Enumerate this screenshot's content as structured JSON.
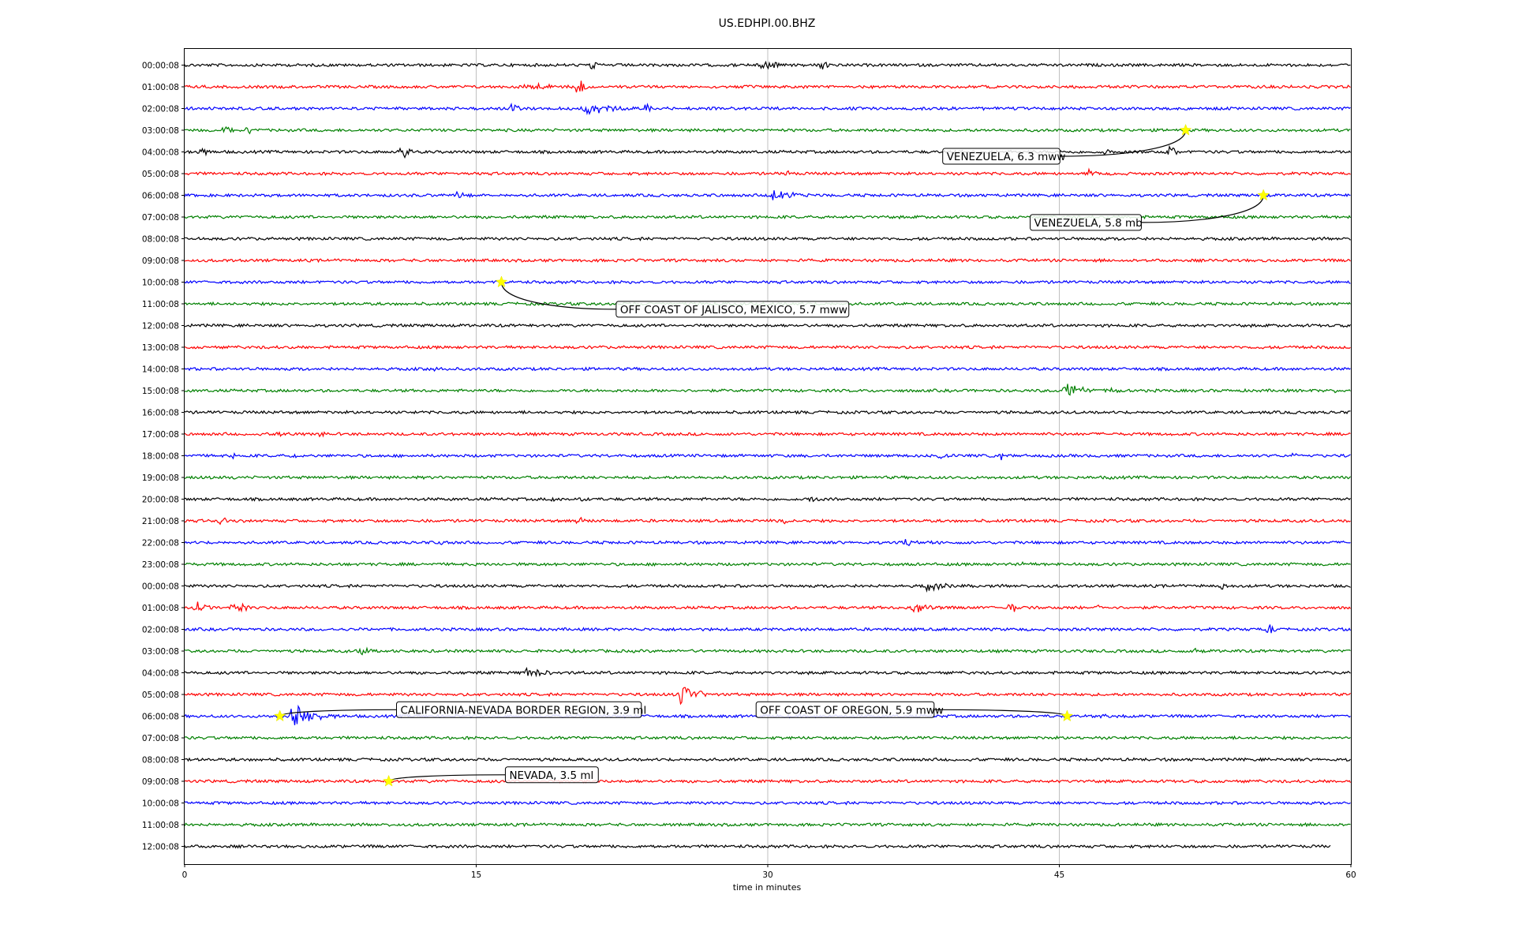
{
  "chart_data": {
    "type": "line",
    "title": "US.EDHPI.00.BHZ",
    "xlabel": "time in minutes",
    "xlim": [
      0,
      60
    ],
    "xticks": [
      0,
      15,
      30,
      45,
      60
    ],
    "grid": "vertical",
    "trace_colors": [
      "#000000",
      "#ff0000",
      "#0000ff",
      "#008000"
    ],
    "rows": [
      "00:00:08",
      "01:00:08",
      "02:00:08",
      "03:00:08",
      "04:00:08",
      "05:00:08",
      "06:00:08",
      "07:00:08",
      "08:00:08",
      "09:00:08",
      "10:00:08",
      "11:00:08",
      "12:00:08",
      "13:00:08",
      "14:00:08",
      "15:00:08",
      "16:00:08",
      "17:00:08",
      "18:00:08",
      "19:00:08",
      "20:00:08",
      "21:00:08",
      "22:00:08",
      "23:00:08",
      "00:00:08",
      "01:00:08",
      "02:00:08",
      "03:00:08",
      "04:00:08",
      "05:00:08",
      "06:00:08",
      "07:00:08",
      "08:00:08",
      "09:00:08",
      "10:00:08",
      "11:00:08",
      "12:00:08"
    ],
    "last_row_end_minute": 59,
    "bursts": [
      {
        "row": 0,
        "minute": 21.0,
        "amp": 1.6,
        "dur": 0.3
      },
      {
        "row": 0,
        "minute": 29.8,
        "amp": 1.8,
        "dur": 1.2
      },
      {
        "row": 0,
        "minute": 32.8,
        "amp": 1.0,
        "dur": 0.6
      },
      {
        "row": 1,
        "minute": 17.5,
        "amp": 0.8,
        "dur": 3.5
      },
      {
        "row": 1,
        "minute": 20.3,
        "amp": 1.8,
        "dur": 0.6
      },
      {
        "row": 2,
        "minute": 16.8,
        "amp": 1.0,
        "dur": 1.0
      },
      {
        "row": 2,
        "minute": 20.5,
        "amp": 1.2,
        "dur": 3.5
      },
      {
        "row": 2,
        "minute": 23.8,
        "amp": 1.8,
        "dur": 0.3
      },
      {
        "row": 3,
        "minute": 2.0,
        "amp": 1.0,
        "dur": 1.5
      },
      {
        "row": 3,
        "minute": 3.3,
        "amp": 1.0,
        "dur": 0.3
      },
      {
        "row": 4,
        "minute": 0.8,
        "amp": 1.0,
        "dur": 0.8
      },
      {
        "row": 4,
        "minute": 11.2,
        "amp": 1.4,
        "dur": 0.8
      },
      {
        "row": 4,
        "minute": 47.3,
        "amp": 0.8,
        "dur": 0.8
      },
      {
        "row": 4,
        "minute": 50.6,
        "amp": 1.6,
        "dur": 0.8
      },
      {
        "row": 5,
        "minute": 31.0,
        "amp": 1.0,
        "dur": 0.3
      },
      {
        "row": 5,
        "minute": 46.5,
        "amp": 0.8,
        "dur": 1.0
      },
      {
        "row": 6,
        "minute": 14.0,
        "amp": 0.6,
        "dur": 2.0
      },
      {
        "row": 6,
        "minute": 30.2,
        "amp": 1.2,
        "dur": 2.5
      },
      {
        "row": 10,
        "minute": 16.3,
        "amp": 0.4,
        "dur": 0.6
      },
      {
        "row": 14,
        "minute": 12.8,
        "amp": 0.6,
        "dur": 1.0
      },
      {
        "row": 15,
        "minute": 45.2,
        "amp": 1.8,
        "dur": 2.0
      },
      {
        "row": 15,
        "minute": 47.8,
        "amp": 0.8,
        "dur": 0.8
      },
      {
        "row": 15,
        "minute": 59.3,
        "amp": 1.0,
        "dur": 0.4
      },
      {
        "row": 17,
        "minute": 4.8,
        "amp": 0.8,
        "dur": 1.0
      },
      {
        "row": 17,
        "minute": 7.0,
        "amp": 0.8,
        "dur": 0.6
      },
      {
        "row": 18,
        "minute": 2.5,
        "amp": 0.8,
        "dur": 0.4
      },
      {
        "row": 18,
        "minute": 5.5,
        "amp": 0.8,
        "dur": 0.6
      },
      {
        "row": 18,
        "minute": 38.8,
        "amp": 0.8,
        "dur": 0.6
      },
      {
        "row": 18,
        "minute": 42.0,
        "amp": 0.8,
        "dur": 0.3
      },
      {
        "row": 18,
        "minute": 57.0,
        "amp": 0.8,
        "dur": 0.5
      },
      {
        "row": 19,
        "minute": 2.5,
        "amp": 0.8,
        "dur": 0.4
      },
      {
        "row": 19,
        "minute": 47.5,
        "amp": 0.6,
        "dur": 0.6
      },
      {
        "row": 20,
        "minute": 18.8,
        "amp": 0.8,
        "dur": 1.0
      },
      {
        "row": 20,
        "minute": 20.5,
        "amp": 1.0,
        "dur": 0.4
      },
      {
        "row": 20,
        "minute": 32.3,
        "amp": 1.0,
        "dur": 0.6
      },
      {
        "row": 21,
        "minute": 1.8,
        "amp": 0.8,
        "dur": 1.0
      },
      {
        "row": 21,
        "minute": 20.3,
        "amp": 1.0,
        "dur": 0.6
      },
      {
        "row": 21,
        "minute": 30.8,
        "amp": 1.0,
        "dur": 0.4
      },
      {
        "row": 22,
        "minute": 13.2,
        "amp": 0.6,
        "dur": 0.5
      },
      {
        "row": 22,
        "minute": 37.0,
        "amp": 0.6,
        "dur": 2.0
      },
      {
        "row": 23,
        "minute": 38.0,
        "amp": 0.8,
        "dur": 0.3
      },
      {
        "row": 23,
        "minute": 43.0,
        "amp": 0.8,
        "dur": 0.3
      },
      {
        "row": 24,
        "minute": 38.0,
        "amp": 1.0,
        "dur": 3.0
      },
      {
        "row": 24,
        "minute": 53.3,
        "amp": 1.0,
        "dur": 0.4
      },
      {
        "row": 25,
        "minute": 0.5,
        "amp": 1.2,
        "dur": 1.5
      },
      {
        "row": 25,
        "minute": 2.5,
        "amp": 1.2,
        "dur": 1.5
      },
      {
        "row": 25,
        "minute": 37.5,
        "amp": 1.2,
        "dur": 2.0
      },
      {
        "row": 25,
        "minute": 42.5,
        "amp": 1.2,
        "dur": 0.8
      },
      {
        "row": 25,
        "minute": 47.0,
        "amp": 0.8,
        "dur": 0.4
      },
      {
        "row": 26,
        "minute": 55.8,
        "amp": 1.0,
        "dur": 0.6
      },
      {
        "row": 27,
        "minute": 9.0,
        "amp": 0.8,
        "dur": 1.5
      },
      {
        "row": 27,
        "minute": 52.0,
        "amp": 0.8,
        "dur": 0.4
      },
      {
        "row": 28,
        "minute": 17.5,
        "amp": 1.0,
        "dur": 2.5
      },
      {
        "row": 29,
        "minute": 25.5,
        "amp": 1.8,
        "dur": 1.5
      },
      {
        "row": 29,
        "minute": 26.6,
        "amp": 1.6,
        "dur": 0.2
      },
      {
        "row": 30,
        "minute": 5.5,
        "amp": 2.2,
        "dur": 2.5
      },
      {
        "row": 30,
        "minute": 47.0,
        "amp": 0.6,
        "dur": 1.5
      }
    ],
    "events": [
      {
        "label": "VENEZUELA, 6.3 mww",
        "row": 3,
        "minute": 51.5,
        "box_row": 4.2,
        "box_minute": 39.0
      },
      {
        "label": "VENEZUELA, 5.8 mb",
        "row": 6,
        "minute": 55.5,
        "box_row": 7.25,
        "box_minute": 43.5
      },
      {
        "label": "OFF COAST OF JALISCO, MEXICO, 5.7 mww",
        "row": 10,
        "minute": 16.3,
        "box_row": 11.25,
        "box_minute": 22.2
      },
      {
        "label": "CALIFORNIA-NEVADA BORDER REGION, 3.9 ml",
        "row": 30,
        "minute": 4.9,
        "box_row": 29.7,
        "box_minute": 10.9
      },
      {
        "label": "OFF COAST OF OREGON, 5.9 mww",
        "row": 30,
        "minute": 45.4,
        "box_row": 29.7,
        "box_minute": 29.4
      },
      {
        "label": "NEVADA, 3.5 ml",
        "row": 33,
        "minute": 10.5,
        "box_row": 32.7,
        "box_minute": 16.5
      }
    ]
  }
}
